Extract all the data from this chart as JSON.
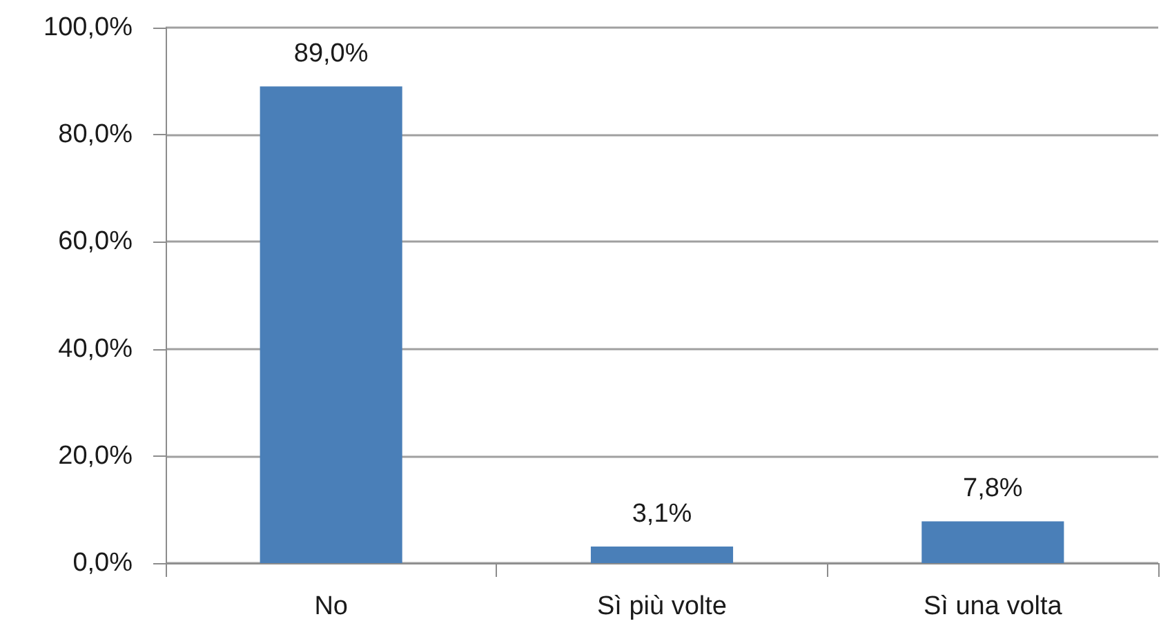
{
  "chart_data": {
    "type": "bar",
    "categories": [
      "No",
      "Sì più volte",
      "Sì una volta"
    ],
    "values": [
      89.0,
      3.1,
      7.8
    ],
    "color": "#4a7fb8",
    "value_labels": [
      "89,0%",
      "3,1%",
      "7,8%"
    ],
    "ylim": [
      0,
      100
    ],
    "yticks": [
      {
        "value": 0,
        "label": "0,0%"
      },
      {
        "value": 20,
        "label": "20,0%"
      },
      {
        "value": 40,
        "label": "40,0%"
      },
      {
        "value": 60,
        "label": "60,0%"
      },
      {
        "value": 80,
        "label": "80,0%"
      },
      {
        "value": 100,
        "label": "100,0%"
      }
    ],
    "grid": "y"
  }
}
